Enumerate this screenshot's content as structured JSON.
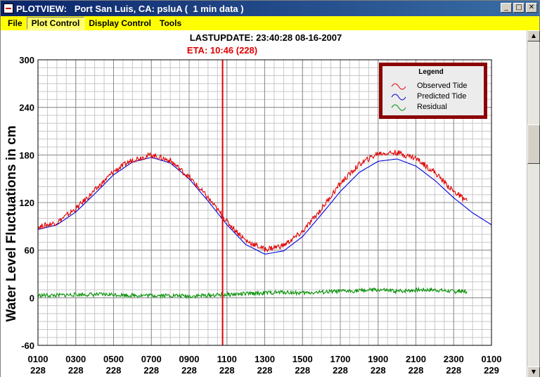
{
  "window": {
    "title": "PLOTVIEW:   Port San Luis, CA: psluA (  1 min data )",
    "buttons": {
      "minimize": "_",
      "maximize": "□",
      "close": "✕"
    }
  },
  "menu": {
    "items": [
      {
        "label": "File",
        "active": false
      },
      {
        "label": "Plot Control",
        "active": true
      },
      {
        "label": "Display Control",
        "active": false
      },
      {
        "label": "Tools",
        "active": false
      }
    ]
  },
  "header": {
    "lastupdate": "LASTUPDATE: 23:40:28  08-16-2007",
    "eta": "ETA: 10:46 (228)"
  },
  "colors": {
    "observed": "#e00000",
    "predicted": "#0000dd",
    "residual": "#009000",
    "eta_line": "#e00000",
    "eta_text": "#e00000",
    "legend_border": "#8b0000"
  },
  "chart_data": {
    "type": "line",
    "ylabel": "Water Level Fluctuations in cm",
    "xlabel": "",
    "ylim": [
      -60,
      300
    ],
    "xlim": [
      1,
      25
    ],
    "grid": true,
    "legend_position": "top-right",
    "legend_title": "Legend",
    "y_ticks": [
      "300",
      "240",
      "180",
      "120",
      "60",
      "0",
      "-60"
    ],
    "x_ticks": [
      {
        "time": "0100",
        "day": "228"
      },
      {
        "time": "0300",
        "day": "228"
      },
      {
        "time": "0500",
        "day": "228"
      },
      {
        "time": "0700",
        "day": "228"
      },
      {
        "time": "0900",
        "day": "228"
      },
      {
        "time": "1100",
        "day": "228"
      },
      {
        "time": "1300",
        "day": "228"
      },
      {
        "time": "1500",
        "day": "228"
      },
      {
        "time": "1700",
        "day": "228"
      },
      {
        "time": "1900",
        "day": "228"
      },
      {
        "time": "2100",
        "day": "228"
      },
      {
        "time": "2300",
        "day": "228"
      },
      {
        "time": "0100",
        "day": "229"
      }
    ],
    "eta_hour": 10.77,
    "series": [
      {
        "name": "Predicted Tide",
        "color": "#0000dd",
        "x": [
          1,
          2,
          3,
          4,
          5,
          6,
          7,
          8,
          9,
          10,
          11,
          12,
          13,
          14,
          15,
          16,
          17,
          18,
          19,
          20,
          21,
          22,
          23,
          24,
          25
        ],
        "y": [
          86,
          92,
          108,
          131,
          155,
          171,
          177,
          170,
          150,
          122,
          92,
          67,
          55,
          59,
          77,
          105,
          134,
          158,
          172,
          175,
          166,
          148,
          126,
          107,
          92
        ]
      },
      {
        "name": "Observed Tide",
        "color": "#e00000",
        "x": [
          1,
          2,
          3,
          4,
          5,
          6,
          7,
          8,
          9,
          10,
          11,
          12,
          13,
          14,
          15,
          16,
          17,
          18,
          19,
          20,
          21,
          22,
          23,
          23.7
        ],
        "y": [
          89,
          95,
          112,
          135,
          159,
          174,
          180,
          173,
          152,
          126,
          96,
          72,
          61,
          66,
          83,
          112,
          144,
          168,
          182,
          183,
          176,
          158,
          134,
          122
        ]
      },
      {
        "name": "Residual",
        "color": "#009000",
        "x": [
          1,
          2,
          3,
          4,
          5,
          6,
          7,
          8,
          9,
          10,
          11,
          12,
          13,
          14,
          15,
          16,
          17,
          18,
          19,
          20,
          21,
          22,
          23,
          23.7
        ],
        "y": [
          3,
          3,
          4,
          4,
          4,
          3,
          3,
          3,
          2,
          3,
          4,
          5,
          6,
          7,
          6,
          7,
          8,
          9,
          10,
          8,
          10,
          10,
          8,
          8
        ]
      }
    ]
  }
}
